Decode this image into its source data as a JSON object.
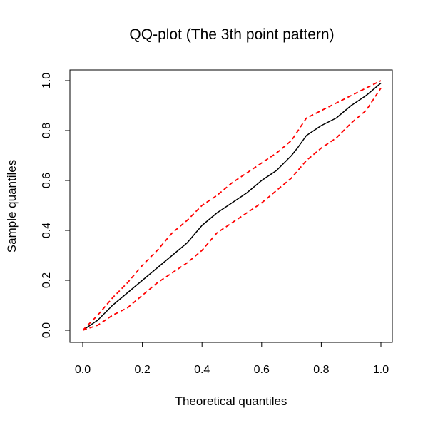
{
  "chart_data": {
    "type": "line",
    "title": "QQ-plot (The 3th point pattern)",
    "xlabel": "Theoretical quantiles",
    "ylabel": "Sample quantiles",
    "xlim": [
      0,
      1
    ],
    "ylim": [
      0,
      1
    ],
    "x_ticks": [
      "0.0",
      "0.2",
      "0.4",
      "0.6",
      "0.8",
      "1.0"
    ],
    "y_ticks": [
      "0.0",
      "0.2",
      "0.4",
      "0.6",
      "0.8",
      "1.0"
    ],
    "grid": false,
    "legend": "none",
    "series": [
      {
        "role": "sample",
        "color": "#000000",
        "dash": "solid",
        "x": [
          0.0,
          0.05,
          0.1,
          0.15,
          0.2,
          0.25,
          0.3,
          0.35,
          0.4,
          0.45,
          0.5,
          0.55,
          0.6,
          0.65,
          0.7,
          0.72,
          0.75,
          0.8,
          0.85,
          0.9,
          0.95,
          1.0
        ],
        "y": [
          0.0,
          0.04,
          0.1,
          0.15,
          0.2,
          0.25,
          0.3,
          0.35,
          0.42,
          0.47,
          0.51,
          0.55,
          0.6,
          0.64,
          0.7,
          0.73,
          0.78,
          0.82,
          0.85,
          0.9,
          0.94,
          0.99
        ]
      },
      {
        "role": "upper-envelope",
        "color": "#ff0000",
        "dash": "dashed",
        "x": [
          0.0,
          0.05,
          0.1,
          0.15,
          0.2,
          0.25,
          0.3,
          0.35,
          0.4,
          0.45,
          0.5,
          0.55,
          0.6,
          0.65,
          0.7,
          0.75,
          0.8,
          0.85,
          0.9,
          0.95,
          1.0
        ],
        "y": [
          0.0,
          0.06,
          0.13,
          0.19,
          0.26,
          0.32,
          0.39,
          0.44,
          0.5,
          0.54,
          0.59,
          0.63,
          0.67,
          0.71,
          0.76,
          0.85,
          0.88,
          0.91,
          0.94,
          0.97,
          1.0
        ]
      },
      {
        "role": "lower-envelope",
        "color": "#ff0000",
        "dash": "dashed",
        "x": [
          0.0,
          0.05,
          0.1,
          0.15,
          0.2,
          0.25,
          0.3,
          0.35,
          0.4,
          0.45,
          0.5,
          0.55,
          0.6,
          0.65,
          0.7,
          0.75,
          0.8,
          0.85,
          0.9,
          0.95,
          1.0
        ],
        "y": [
          0.0,
          0.02,
          0.06,
          0.09,
          0.14,
          0.19,
          0.23,
          0.27,
          0.32,
          0.39,
          0.43,
          0.47,
          0.51,
          0.56,
          0.61,
          0.68,
          0.73,
          0.77,
          0.83,
          0.88,
          0.97
        ]
      }
    ]
  }
}
